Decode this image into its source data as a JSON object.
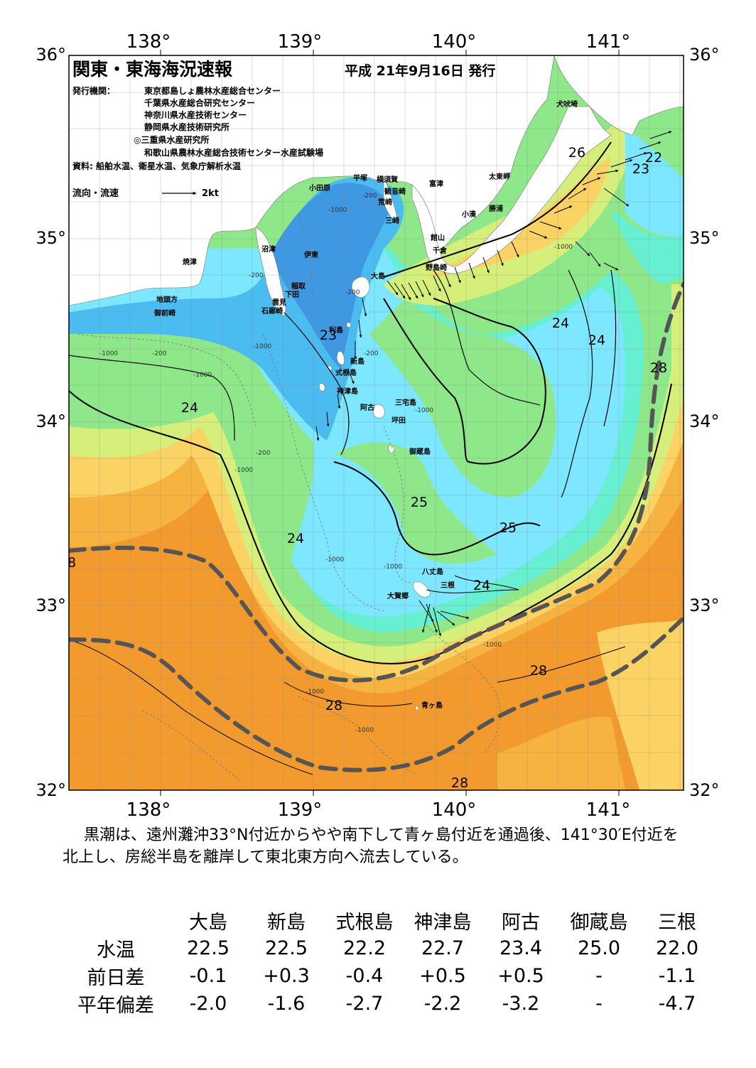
{
  "header": {
    "title": "関東・東海海況速報",
    "issue_date": "平成 21年9月16日 発行",
    "publisher_label": "発行機関：",
    "publishers": [
      "東京都島しょ農林水産総合センター",
      "千葉県水産総合研究センター",
      "神奈川県水産技術センター",
      "静岡県水産技術研究所",
      "◎三重県水産研究所",
      "和歌山県農林水産総合技術センター水産試験場"
    ],
    "sources": "資料: 船舶水温、衛星水温、気象庁解析水温",
    "current_legend_label": "流向・流速",
    "current_legend_scale": "2kt"
  },
  "axes": {
    "lon_labels": [
      "138°",
      "139°",
      "140°",
      "141°"
    ],
    "lat_labels": [
      "36°",
      "35°",
      "34°",
      "33°",
      "32°"
    ]
  },
  "places": {
    "inubosaki": "犬吠埼",
    "taitomisaki": "太東岬",
    "katsuura": "勝浦",
    "kominato": "小湊",
    "tomitsu": "富津",
    "yokosuka": "横須賀",
    "kannonzaki": "観音崎",
    "arasaki": "荒崎",
    "misaki": "三崎",
    "hiratsuka": "平塚",
    "odawara": "小田原",
    "tateyama": "館山",
    "chikura": "千倉",
    "nojimazaki": "野島崎",
    "numazu": "沼津",
    "ito": "伊東",
    "yaizu": "焼津",
    "inatori": "稲取",
    "shimoda": "下田",
    "kumomi": "雲見",
    "irozaki": "石廊崎",
    "jitogata": "地頭方",
    "omaezaki": "御前崎",
    "oshima": "大島",
    "toshima": "利島",
    "niijima": "新島",
    "shikinejima": "式根島",
    "kozushima": "神津島",
    "ako": "阿古",
    "miyakejima": "三宅島",
    "tsubota": "坪田",
    "mikurajima": "御蔵島",
    "hachijojima": "八丈島",
    "mine": "三根",
    "ogago": "大賀郷",
    "aogashima": "青ヶ島"
  },
  "isotherm_labels": [
    "22",
    "23",
    "23",
    "24",
    "24",
    "24",
    "24",
    "24",
    "25",
    "25",
    "26",
    "28",
    "28",
    "28",
    "28",
    "8"
  ],
  "depth_labels": [
    "-200",
    "-200",
    "-200",
    "-200",
    "-200",
    "-200",
    "-1000",
    "-1000",
    "-1000",
    "-1000",
    "-1000",
    "-1000",
    "-1000",
    "-1000",
    "-1000",
    "-1000",
    "-1000",
    "-1000"
  ],
  "summary": "黒潮は、遠州灘沖33°N付近からやや南下して青ヶ島付近を通過後、141°30′E付近を北上し、房総半島を離岸して東北東方向へ流去している。",
  "table": {
    "columns": [
      "大島",
      "新島",
      "式根島",
      "神津島",
      "阿古",
      "御蔵島",
      "三根"
    ],
    "rows": [
      {
        "label": "水温",
        "values": [
          "22.5",
          "22.5",
          "22.2",
          "22.7",
          "23.4",
          "25.0",
          "22.0"
        ]
      },
      {
        "label": "前日差",
        "values": [
          "-0.1",
          "+0.3",
          "-0.4",
          "+0.5",
          "+0.5",
          "-",
          "-1.1"
        ]
      },
      {
        "label": "平年偏差",
        "values": [
          "-2.0",
          "-1.6",
          "-2.7",
          "-2.2",
          "-3.2",
          "-",
          "-4.7"
        ]
      }
    ]
  },
  "colors": {
    "over28": "#f29a2e",
    "t27": "#f7b33f",
    "t26": "#fbd364",
    "t25": "#d6ef7a",
    "t24": "#8ee88a",
    "t23": "#66efd0",
    "t22": "#7de7ff",
    "t21": "#4bbcf0",
    "t20": "#3f98e2",
    "land": "#ffffff",
    "kuroshio": "#555555"
  }
}
